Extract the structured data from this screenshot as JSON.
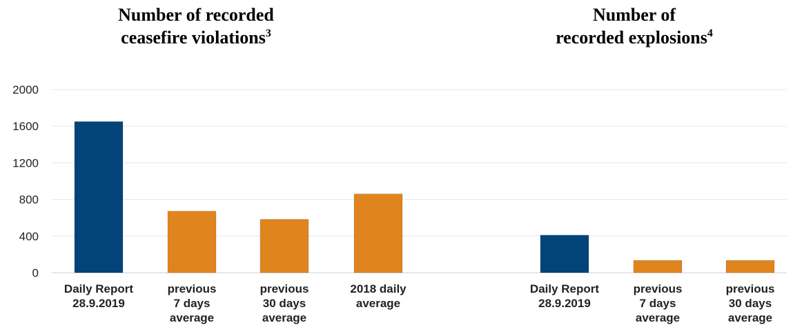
{
  "chart_data": {
    "type": "bar",
    "ylim": [
      0,
      2000
    ],
    "yticks": [
      0,
      400,
      800,
      1200,
      1600,
      2000
    ],
    "grid": true,
    "colors": {
      "current": "#024379",
      "average": "#e08420"
    },
    "panels": [
      {
        "title_lines": [
          "Number of recorded",
          "ceasefire violations"
        ],
        "title_footnote": "3",
        "categories": [
          [
            "Daily Report",
            "28.9.2019"
          ],
          [
            "previous",
            "7 days",
            "average"
          ],
          [
            "previous",
            "30 days",
            "average"
          ],
          [
            "2018 daily",
            "average"
          ]
        ],
        "values": [
          1650,
          672,
          583,
          860
        ],
        "bar_color_keys": [
          "current",
          "average",
          "average",
          "average"
        ]
      },
      {
        "title_lines": [
          "Number of",
          "recorded explosions"
        ],
        "title_footnote": "4",
        "categories": [
          [
            "Daily Report",
            "28.9.2019"
          ],
          [
            "previous",
            "7 days",
            "average"
          ],
          [
            "previous",
            "30 days",
            "average"
          ]
        ],
        "values": [
          410,
          135,
          135
        ],
        "bar_color_keys": [
          "current",
          "average",
          "average"
        ]
      }
    ]
  }
}
